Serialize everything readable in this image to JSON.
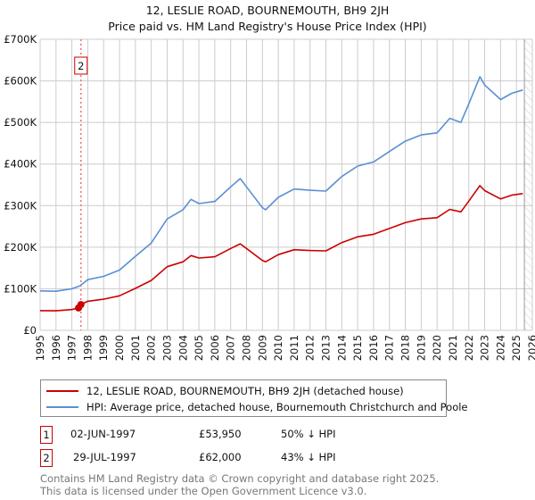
{
  "chart_data": {
    "type": "line",
    "title": "12, LESLIE ROAD, BOURNEMOUTH, BH9 2JH",
    "subtitle": "Price paid vs. HM Land Registry's House Price Index (HPI)",
    "xlim": [
      1995,
      2026
    ],
    "ylim": [
      0,
      700000
    ],
    "y_ticks": [
      0,
      100000,
      200000,
      300000,
      400000,
      500000,
      600000,
      700000
    ],
    "y_tick_labels": [
      "£0",
      "£100K",
      "£200K",
      "£300K",
      "£400K",
      "£500K",
      "£600K",
      "£700K"
    ],
    "x_ticks": [
      "1995",
      "1996",
      "1997",
      "1998",
      "1999",
      "2000",
      "2001",
      "2002",
      "2003",
      "2004",
      "2005",
      "2006",
      "2007",
      "2008",
      "2009",
      "2010",
      "2011",
      "2012",
      "2013",
      "2014",
      "2015",
      "2016",
      "2017",
      "2018",
      "2019",
      "2020",
      "2021",
      "2022",
      "2023",
      "2024",
      "2025",
      "2026"
    ],
    "grid": true,
    "forecast_hatch_from": 2025.5,
    "series": [
      {
        "name": "12, LESLIE ROAD, BOURNEMOUTH, BH9 2JH (detached house)",
        "color": "#cc0000",
        "x": [
          1995,
          1996,
          1997,
          1997.42,
          1997.57,
          1998,
          1999,
          2000,
          2001,
          2002,
          2003,
          2004,
          2004.5,
          2005,
          2006,
          2007,
          2007.6,
          2008,
          2009,
          2009.2,
          2010,
          2011,
          2012,
          2013,
          2014,
          2015,
          2016,
          2017,
          2018,
          2019,
          2020,
          2020.8,
          2021.5,
          2022,
          2022.7,
          2023,
          2024,
          2024.7,
          2025.4
        ],
        "y": [
          47500,
          47000,
          50000,
          53950,
          62000,
          70000,
          75000,
          83000,
          101000,
          120000,
          153000,
          165000,
          180000,
          174000,
          177000,
          197000,
          208000,
          197000,
          168000,
          165000,
          182000,
          194000,
          192000,
          191000,
          211000,
          225000,
          231000,
          245000,
          259000,
          268000,
          271000,
          291000,
          285000,
          311000,
          348000,
          336000,
          316000,
          325000,
          329000
        ]
      },
      {
        "name": "HPI: Average price, detached house, Bournemouth Christchurch and Poole",
        "color": "#5b8fd4",
        "x": [
          1995,
          1996,
          1997,
          1997.5,
          1998,
          1999,
          2000,
          2001,
          2002,
          2003,
          2004,
          2004.5,
          2005,
          2006,
          2007,
          2007.6,
          2008,
          2009,
          2009.2,
          2010,
          2011,
          2012,
          2013,
          2014,
          2015,
          2016,
          2017,
          2018,
          2019,
          2020,
          2020.8,
          2021.5,
          2022,
          2022.7,
          2023,
          2024,
          2024.7,
          2025.4
        ],
        "y": [
          95000,
          94000,
          100000,
          107000,
          122000,
          130000,
          145000,
          178000,
          210000,
          268000,
          290000,
          315000,
          305000,
          310000,
          345000,
          365000,
          345000,
          295000,
          290000,
          320000,
          340000,
          337000,
          335000,
          370000,
          395000,
          405000,
          430000,
          455000,
          470000,
          475000,
          510000,
          500000,
          545000,
          610000,
          590000,
          555000,
          570000,
          578000
        ]
      }
    ],
    "sales": [
      {
        "label": "1",
        "date": "02-JUN-1997",
        "price": "£53,950",
        "hpi": "50% ↓ HPI",
        "x": 1997.42,
        "y": 53950
      },
      {
        "label": "2",
        "date": "29-JUL-1997",
        "price": "£62,000",
        "hpi": "43% ↓ HPI",
        "x": 1997.57,
        "y": 62000
      }
    ]
  },
  "legend": {
    "property": "12, LESLIE ROAD, BOURNEMOUTH, BH9 2JH (detached house)",
    "hpi": "HPI: Average price, detached house, Bournemouth Christchurch and Poole"
  },
  "footer": {
    "line1": "Contains HM Land Registry data © Crown copyright and database right 2025.",
    "line2": "This data is licensed under the Open Government Licence v3.0."
  }
}
